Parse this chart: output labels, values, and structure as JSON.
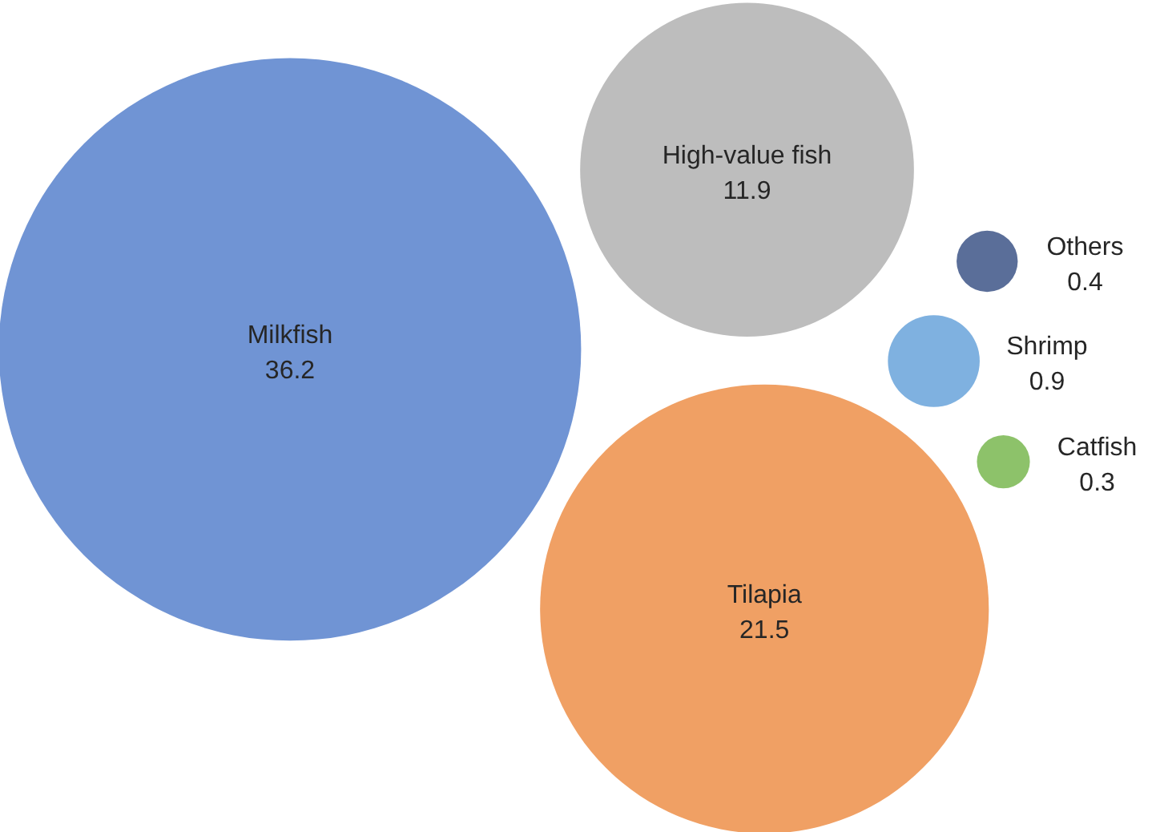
{
  "chart_data": {
    "type": "other",
    "data_labels": true,
    "categories": [
      "Milkfish",
      "High-value fish",
      "Tilapia",
      "Others",
      "Shrimp",
      "Catfish"
    ],
    "values": [
      36.2,
      11.9,
      21.5,
      0.4,
      0.9,
      0.3
    ],
    "colors": [
      "#7094d4",
      "#bdbdbd",
      "#f0a064",
      "#5a6e99",
      "#7fb1e0",
      "#8dc26a"
    ]
  }
}
